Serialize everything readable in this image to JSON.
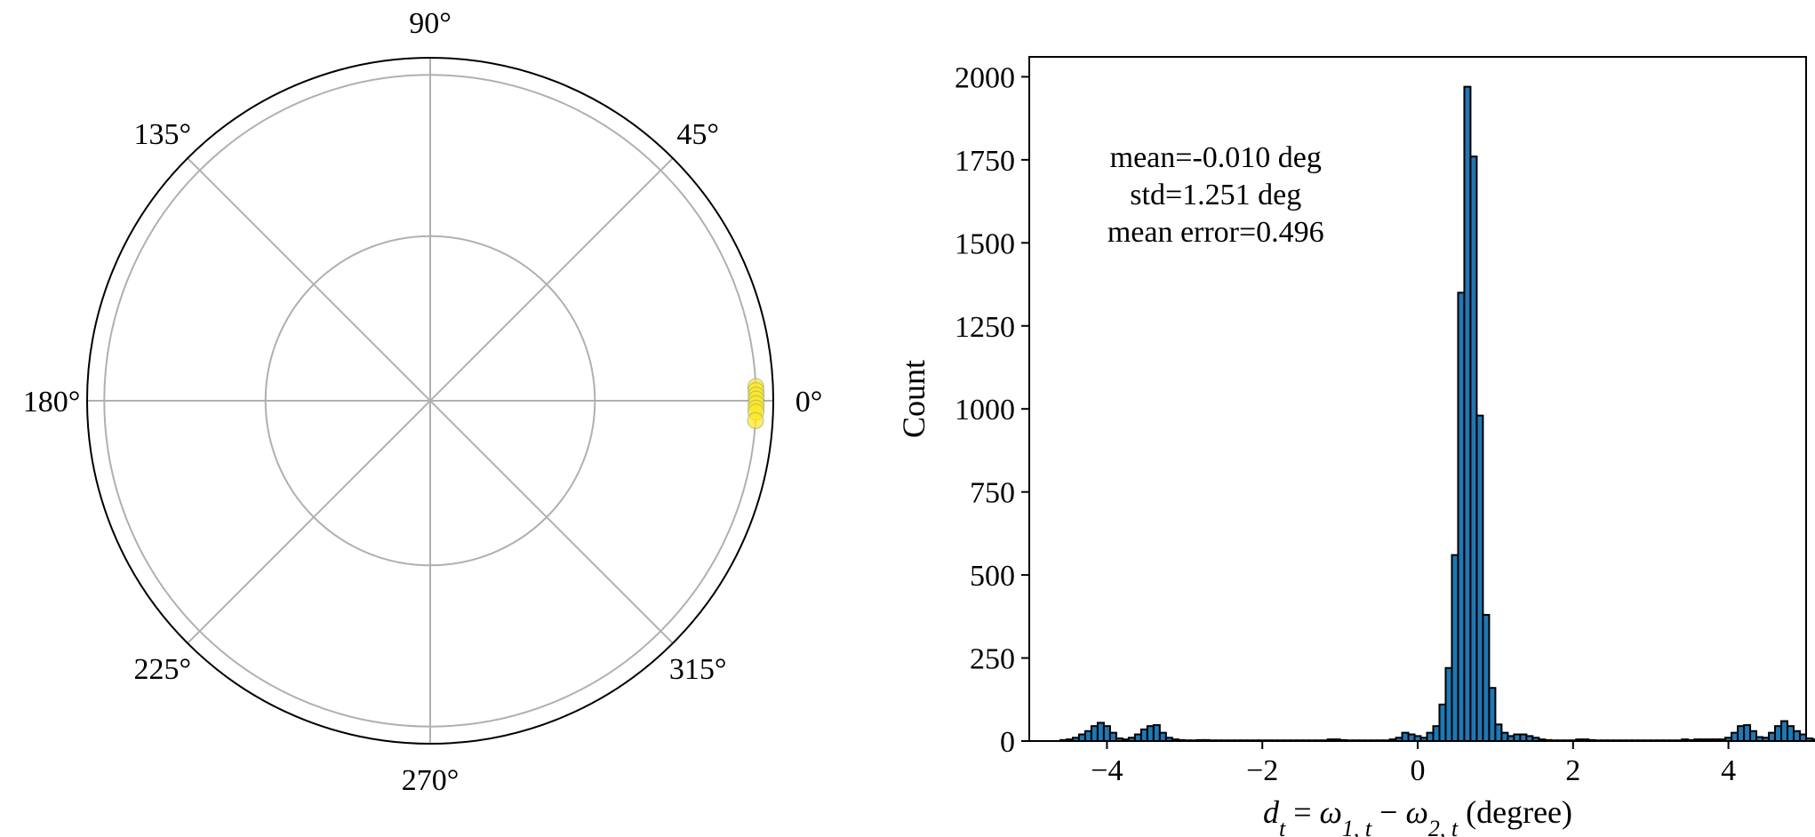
{
  "chart_data": [
    {
      "type": "scatter",
      "subtype": "polar",
      "angle_ticks": [
        "0°",
        "45°",
        "90°",
        "135°",
        "180°",
        "225°",
        "270°",
        "315°"
      ],
      "radial_grid": "2 circles, no radial tick labels",
      "points": [
        {
          "theta_deg": 2.5,
          "r": 1.0
        },
        {
          "theta_deg": 1.8,
          "r": 1.0
        },
        {
          "theta_deg": 1.0,
          "r": 1.0
        },
        {
          "theta_deg": 0.3,
          "r": 1.0
        },
        {
          "theta_deg": -0.5,
          "r": 1.0
        },
        {
          "theta_deg": -1.3,
          "r": 1.0
        },
        {
          "theta_deg": -2.0,
          "r": 1.0
        },
        {
          "theta_deg": -3.5,
          "r": 1.0
        }
      ],
      "colors": {
        "point_fill": "#fde725",
        "point_edge": "#6c8e9e"
      },
      "grid": true
    },
    {
      "type": "bar",
      "subtype": "histogram",
      "xlabel": "d_t = ω_{1,t} − ω_{2,t} (degree)",
      "ylabel": "Count",
      "xlim": [
        -5,
        5
      ],
      "ylim": [
        0,
        2060
      ],
      "xticks": [
        -4,
        -2,
        0,
        2,
        4
      ],
      "xtick_labels": [
        "−4",
        "−2",
        "0",
        "2",
        "4"
      ],
      "yticks": [
        0,
        250,
        500,
        750,
        1000,
        1250,
        1500,
        1750,
        2000
      ],
      "yticks_labels": [
        "0",
        "250",
        "500",
        "750",
        "1000",
        "1250",
        "1500",
        "1750",
        "2000"
      ],
      "annotations": [
        "mean=-0.010 deg",
        "std=1.251 deg",
        "mean error=0.496"
      ],
      "bin_width": 0.08,
      "bin_start": -4.6,
      "values": [
        3,
        5,
        10,
        20,
        30,
        45,
        55,
        45,
        25,
        8,
        5,
        10,
        20,
        35,
        45,
        48,
        25,
        10,
        5,
        3,
        2,
        2,
        3,
        3,
        2,
        2,
        2,
        2,
        2,
        2,
        2,
        2,
        2,
        2,
        2,
        2,
        2,
        2,
        2,
        2,
        2,
        2,
        2,
        5,
        5,
        3,
        2,
        2,
        2,
        2,
        2,
        2,
        2,
        5,
        10,
        25,
        20,
        15,
        10,
        25,
        45,
        110,
        220,
        560,
        1350,
        1970,
        1760,
        980,
        380,
        160,
        50,
        25,
        15,
        20,
        20,
        15,
        10,
        5,
        3,
        2,
        2,
        2,
        2,
        5,
        5,
        3,
        2,
        2,
        2,
        2,
        2,
        2,
        2,
        2,
        2,
        2,
        2,
        2,
        2,
        2,
        5,
        3,
        5,
        5,
        5,
        5,
        5,
        10,
        25,
        45,
        48,
        30,
        12,
        10,
        25,
        45,
        60,
        45,
        30,
        20,
        8,
        5
      ],
      "colors": {
        "bar_fill": "#1f77b4",
        "bar_edge": "#000000"
      },
      "grid": false
    }
  ]
}
